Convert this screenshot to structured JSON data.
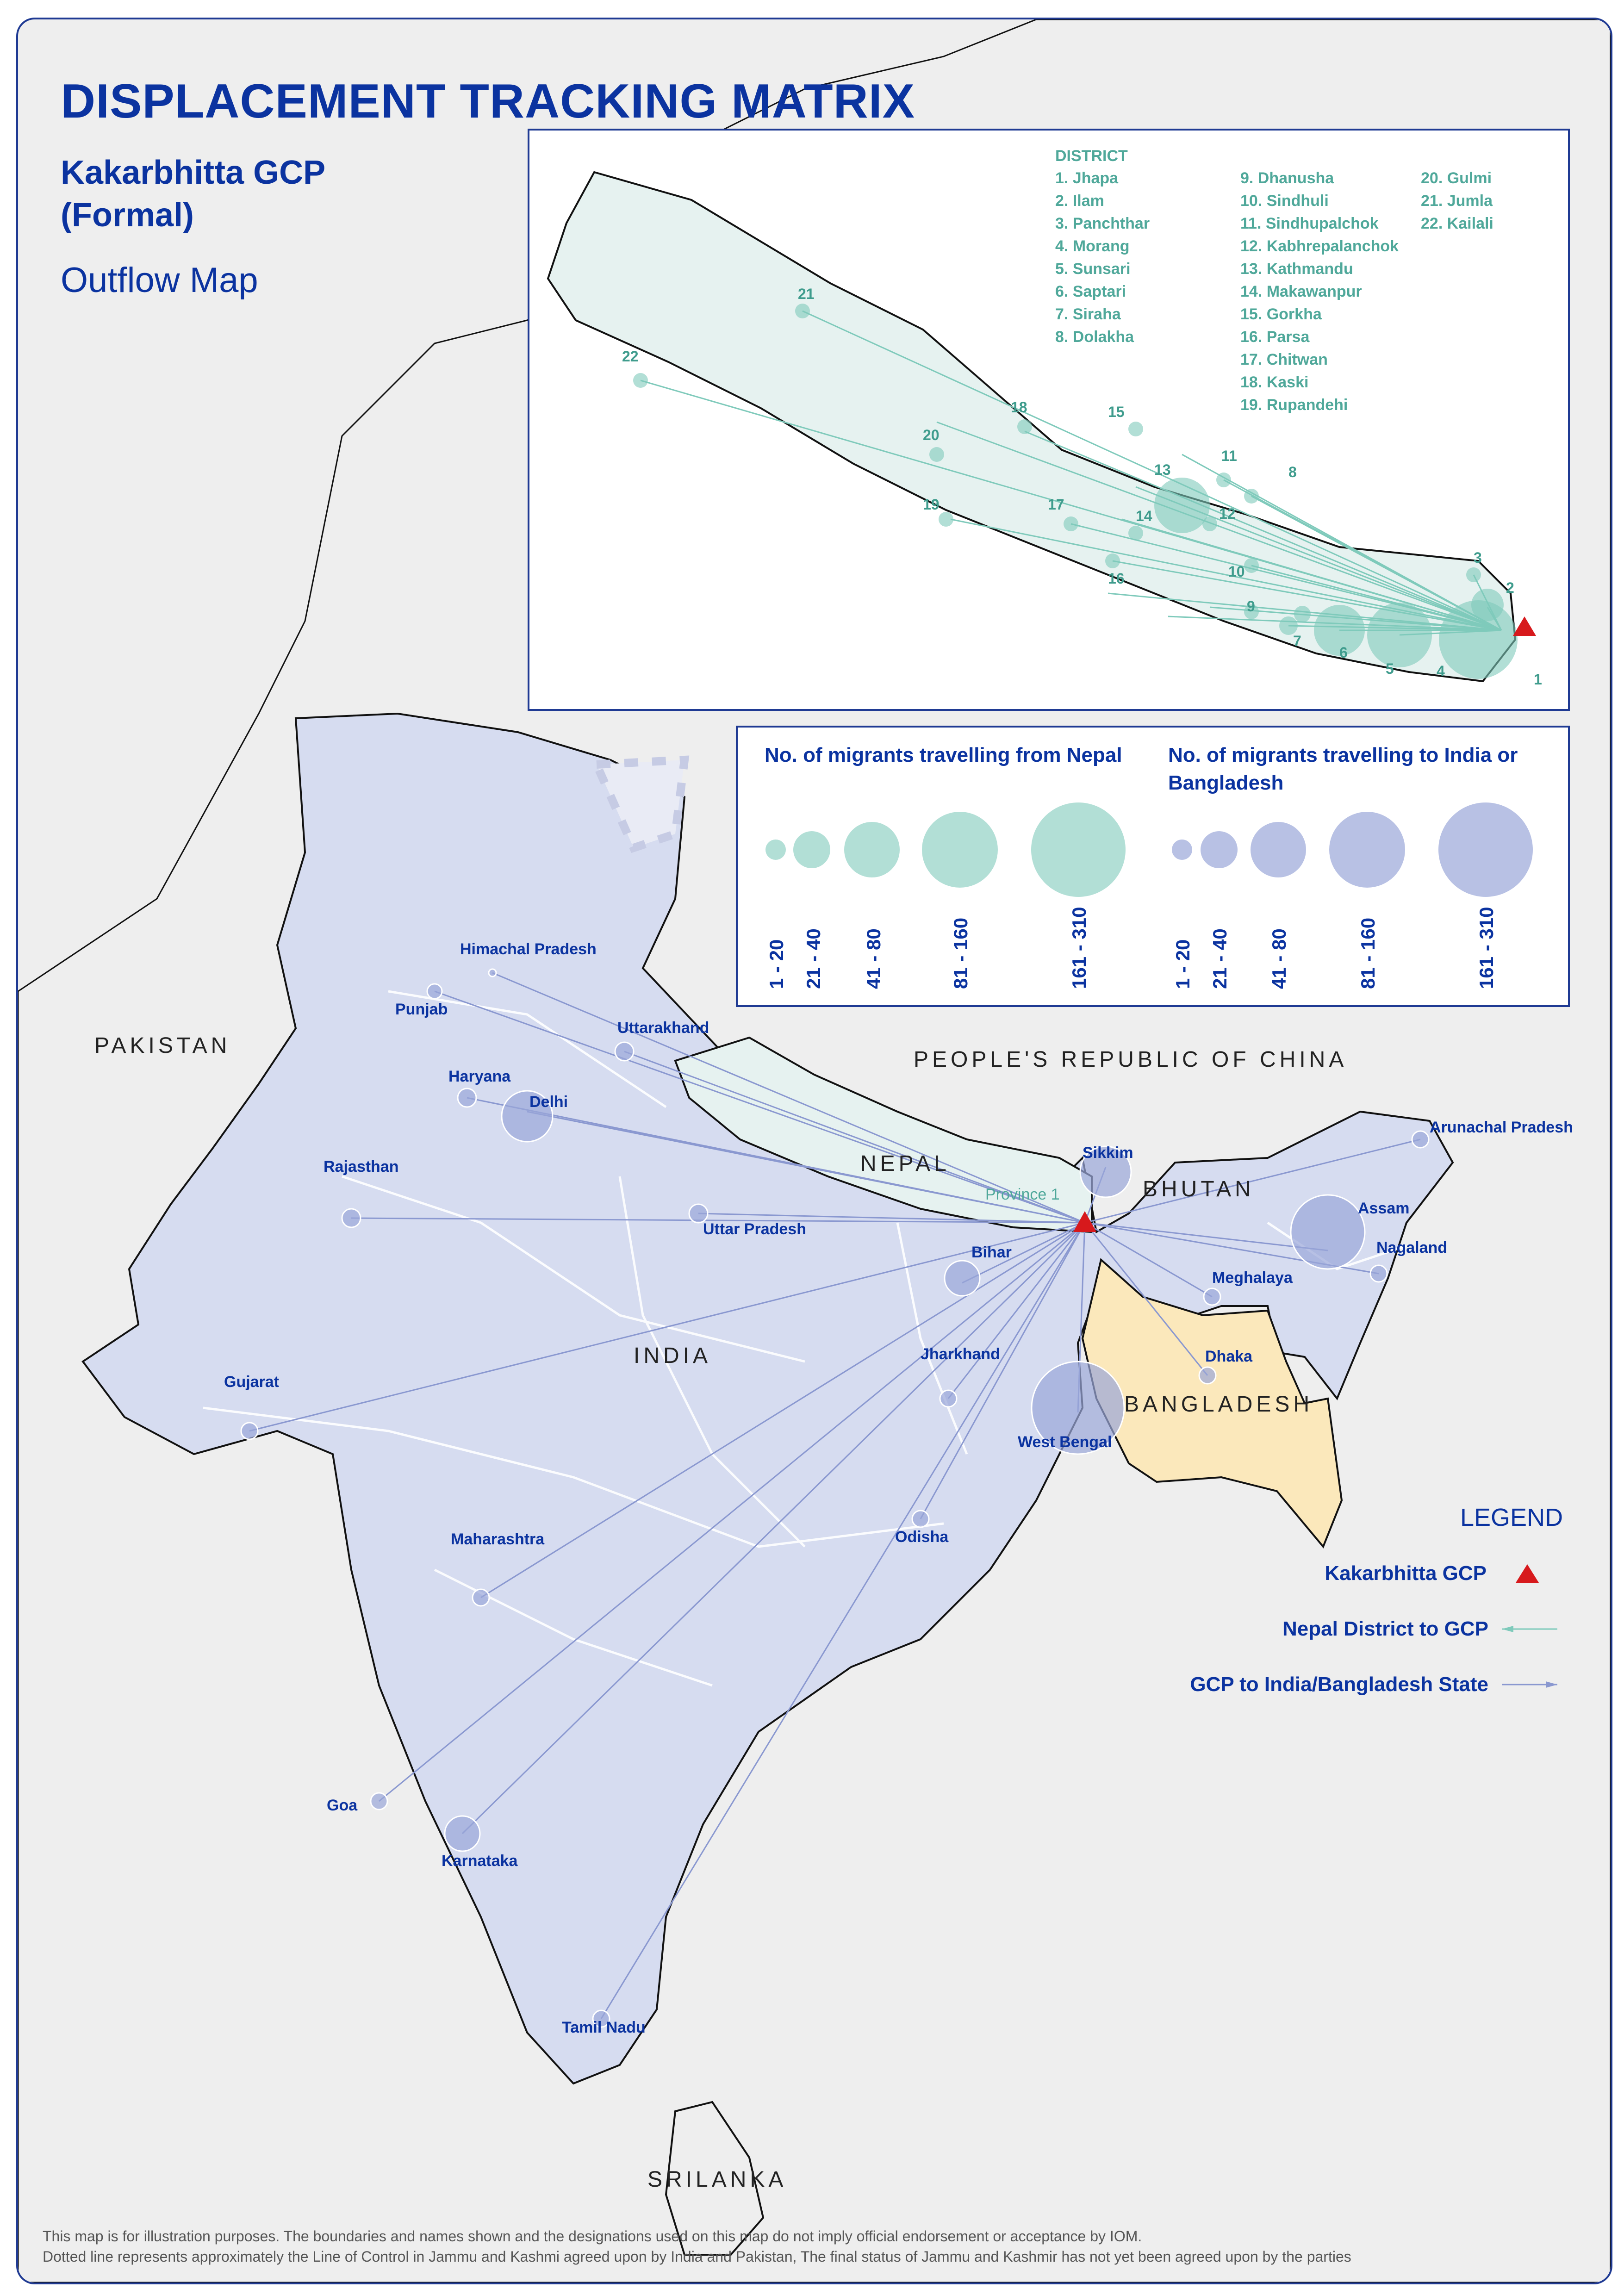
{
  "header": {
    "title": "DISPLACEMENT TRACKING MATRIX",
    "subtitle_line1": "Kakarbhitta GCP",
    "subtitle_line2": "(Formal)",
    "map_type": "Outflow Map"
  },
  "countries": {
    "pakistan": "PAKISTAN",
    "china": "PEOPLE'S REPUBLIC OF CHINA",
    "nepal": "NEPAL",
    "bhutan": "BHUTAN",
    "india": "INDIA",
    "bangladesh": "BANGLADESH",
    "srilanka": "SRILANKA"
  },
  "province_label": "Province 1",
  "states": {
    "himachal": "Himachal Pradesh",
    "punjab": "Punjab",
    "uttarakhand": "Uttarakhand",
    "haryana": "Haryana",
    "delhi": "Delhi",
    "rajasthan": "Rajasthan",
    "uttar_pradesh": "Uttar Pradesh",
    "sikkim": "Sikkim",
    "arunachal": "Arunachal Pradesh",
    "assam": "Assam",
    "nagaland": "Nagaland",
    "meghalaya": "Meghalaya",
    "bihar": "Bihar",
    "jharkhand": "Jharkhand",
    "dhaka": "Dhaka",
    "west_bengal": "West Bengal",
    "gujarat": "Gujarat",
    "odisha": "Odisha",
    "maharashtra": "Maharashtra",
    "goa": "Goa",
    "karnataka": "Karnataka",
    "tamil_nadu": "Tamil Nadu"
  },
  "district_list": {
    "heading": "DISTRICT",
    "items": [
      "1.    Jhapa",
      "2.    Ilam",
      "3.    Panchthar",
      "4.    Morang",
      "5.    Sunsari",
      "6.    Saptari",
      "7.    Siraha",
      "8.    Dolakha",
      "9.    Dhanusha",
      "10. Sindhuli",
      "11. Sindhupalchok",
      "12. Kabhrepalanchok",
      "13. Kathmandu",
      "14. Makawanpur",
      "15. Gorkha",
      "16. Parsa",
      "17. Chitwan",
      "18. Kaski",
      "19. Rupandehi",
      "20. Gulmi",
      "21. Jumla",
      "22. Kailali"
    ]
  },
  "inset_numbers": [
    "1",
    "2",
    "3",
    "4",
    "5",
    "6",
    "7",
    "8",
    "9",
    "10",
    "11",
    "12",
    "13",
    "14",
    "15",
    "16",
    "17",
    "18",
    "19",
    "20",
    "21",
    "22"
  ],
  "size_legend": {
    "from_nepal_title": "No. of migrants travelling from Nepal",
    "to_india_title": "No. of migrants travelling to India or Bangladesh",
    "ranges": [
      "1 - 20",
      "21 - 40",
      "41 - 80",
      "81 - 160",
      "161 - 310"
    ]
  },
  "legend": {
    "title": "LEGEND",
    "gcp": "Kakarbhitta GCP",
    "nepal_flow": "Nepal District to GCP",
    "india_flow": "GCP to India/Bangladesh State"
  },
  "colors": {
    "nepal": "#7fcabb",
    "india": "#9aa7d9",
    "india_fill": "#d6dcf0",
    "bangladesh": "#fbe8bb",
    "gcp": "#d7191c",
    "brand": "#0b33a0"
  },
  "disclaimer": {
    "line1": "This map is for illustration purposes. The boundaries and names shown and the designations used on this map do not imply official endorsement or acceptance by IOM.",
    "line2": "Dotted line represents approximately the Line of Control in Jammu and Kashmi agreed upon by India and Pakistan, The final status of Jammu and Kashmir has not yet been agreed upon by the parties"
  }
}
